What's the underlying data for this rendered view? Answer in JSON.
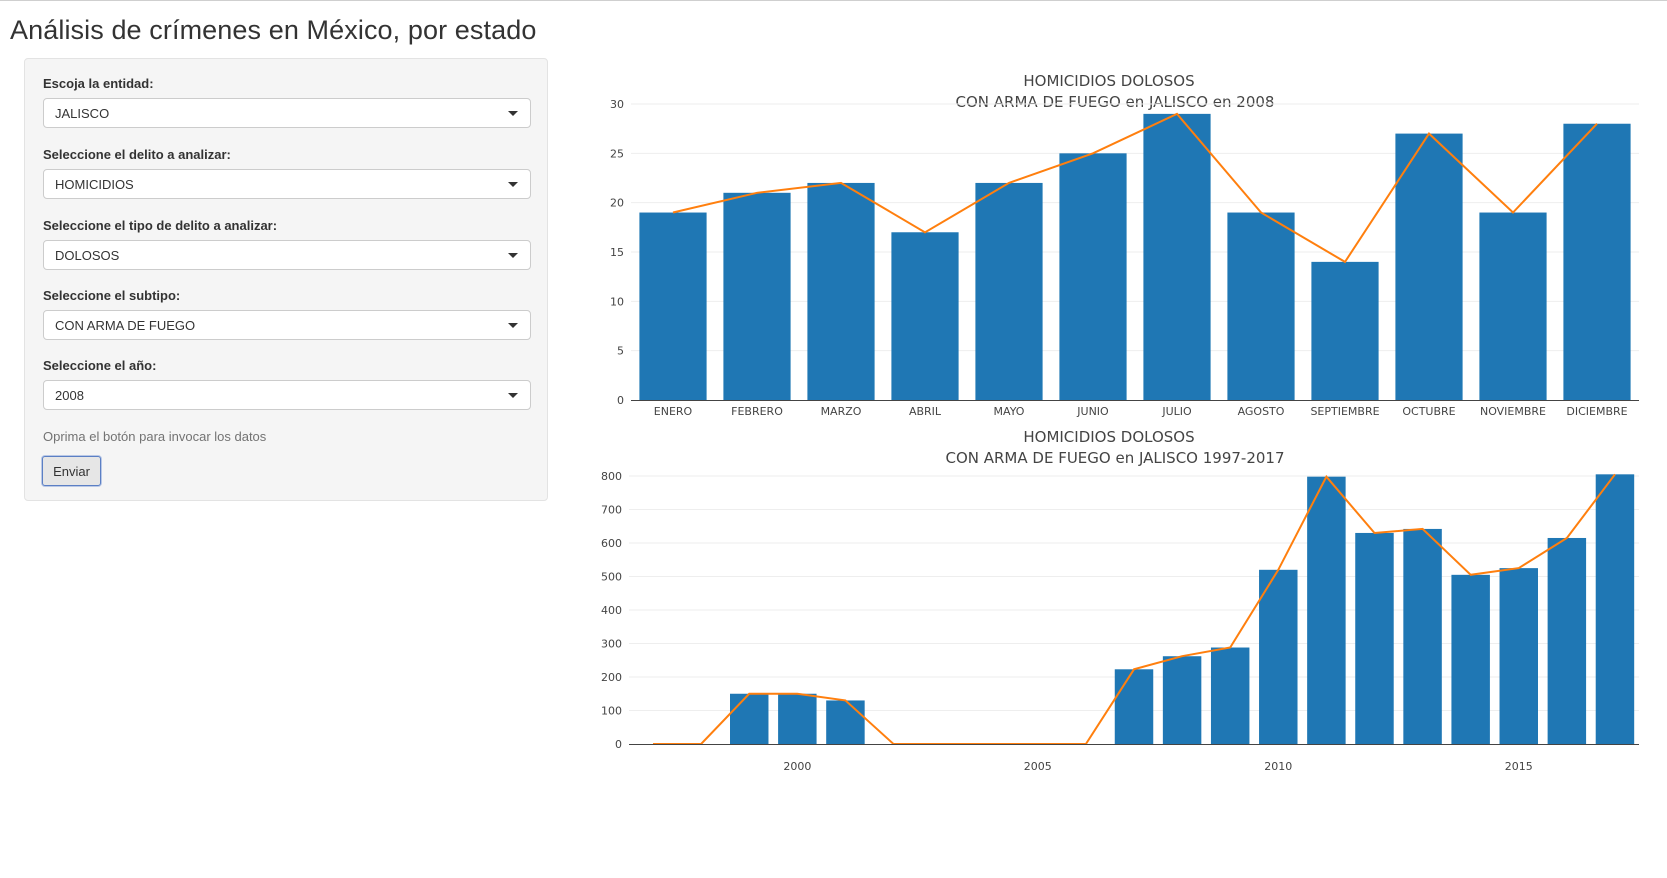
{
  "page": {
    "title": "Análisis de crímenes en México, por estado"
  },
  "form": {
    "entity_label": "Escoja la entidad:",
    "entity_value": "JALISCO",
    "crime_label": "Seleccione el delito a analizar:",
    "crime_value": "HOMICIDIOS",
    "type_label": "Seleccione el tipo de delito a analizar:",
    "type_value": "DOLOSOS",
    "subtype_label": "Seleccione el subtipo:",
    "subtype_value": "CON ARMA DE FUEGO",
    "year_label": "Seleccione el año:",
    "year_value": "2008",
    "help_text": "Oprima el botón para invocar los datos",
    "submit_label": "Enviar"
  },
  "colors": {
    "bar": "#1f77b4",
    "line": "#ff7f0e"
  },
  "chart_data": [
    {
      "type": "bar",
      "title": "HOMICIDIOS DOLOSOS",
      "subtitle": "CON ARMA DE FUEGO en JALISCO en 2008",
      "categories": [
        "ENERO",
        "FEBRERO",
        "MARZO",
        "ABRIL",
        "MAYO",
        "JUNIO",
        "JULIO",
        "AGOSTO",
        "SEPTIEMBRE",
        "OCTUBRE",
        "NOVIEMBRE",
        "DICIEMBRE"
      ],
      "values": [
        19,
        21,
        22,
        17,
        22,
        25,
        29,
        19,
        14,
        27,
        19,
        28
      ],
      "line_values": [
        19,
        21,
        22,
        17,
        22,
        25,
        29,
        19,
        14,
        27,
        19,
        28
      ],
      "ylim": [
        0,
        30
      ],
      "yticks": [
        0,
        5,
        10,
        15,
        20,
        25,
        30
      ],
      "grid": true
    },
    {
      "type": "bar",
      "title": "HOMICIDIOS DOLOSOS",
      "subtitle": "CON ARMA DE FUEGO  en  JALISCO 1997-2017",
      "x": [
        1997,
        1998,
        1999,
        2000,
        2001,
        2002,
        2003,
        2004,
        2005,
        2006,
        2007,
        2008,
        2009,
        2010,
        2011,
        2012,
        2013,
        2014,
        2015,
        2016,
        2017
      ],
      "values": [
        0,
        0,
        150,
        150,
        130,
        0,
        0,
        0,
        0,
        0,
        223,
        262,
        288,
        520,
        798,
        630,
        642,
        505,
        525,
        615,
        805
      ],
      "line_values": [
        0,
        0,
        150,
        150,
        130,
        0,
        0,
        0,
        0,
        0,
        223,
        262,
        288,
        520,
        798,
        630,
        642,
        505,
        525,
        615,
        805
      ],
      "xticks": [
        2000,
        2005,
        2010,
        2015
      ],
      "ylim": [
        0,
        800
      ],
      "yticks": [
        0,
        100,
        200,
        300,
        400,
        500,
        600,
        700,
        800
      ],
      "grid": true
    }
  ]
}
